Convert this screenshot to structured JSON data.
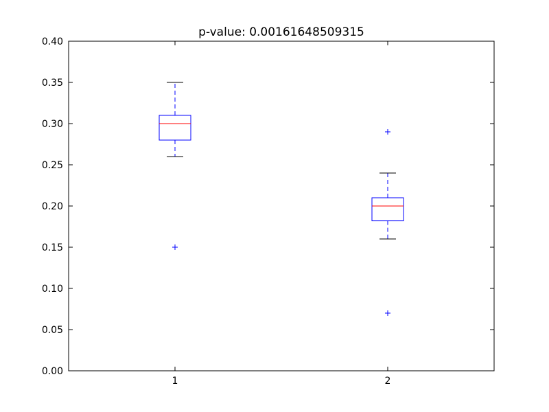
{
  "chart_data": {
    "type": "box",
    "title": "p-value: 0.00161648509315",
    "xlabel": "",
    "ylabel": "",
    "ylim": [
      0.0,
      0.4
    ],
    "xlim": [
      0.5,
      2.5
    ],
    "yticks": [
      {
        "value": 0.0,
        "label": "0.00"
      },
      {
        "value": 0.05,
        "label": "0.05"
      },
      {
        "value": 0.1,
        "label": "0.10"
      },
      {
        "value": 0.15,
        "label": "0.15"
      },
      {
        "value": 0.2,
        "label": "0.20"
      },
      {
        "value": 0.25,
        "label": "0.25"
      },
      {
        "value": 0.3,
        "label": "0.30"
      },
      {
        "value": 0.35,
        "label": "0.35"
      },
      {
        "value": 0.4,
        "label": "0.40"
      }
    ],
    "categories": [
      "1",
      "2"
    ],
    "boxes": [
      {
        "category": "1",
        "whisker_low": 0.26,
        "q1": 0.28,
        "median": 0.3,
        "q3": 0.31,
        "whisker_high": 0.35,
        "outliers": [
          0.15
        ]
      },
      {
        "category": "2",
        "whisker_low": 0.16,
        "q1": 0.182,
        "median": 0.2,
        "q3": 0.21,
        "whisker_high": 0.24,
        "outliers": [
          0.29,
          0.07
        ]
      }
    ],
    "grid": false,
    "colors": {
      "box": "#0000ff",
      "median": "#ff0000",
      "whisker": "#0000ff",
      "cap": "#000000",
      "outlier": "#0000ff"
    }
  }
}
